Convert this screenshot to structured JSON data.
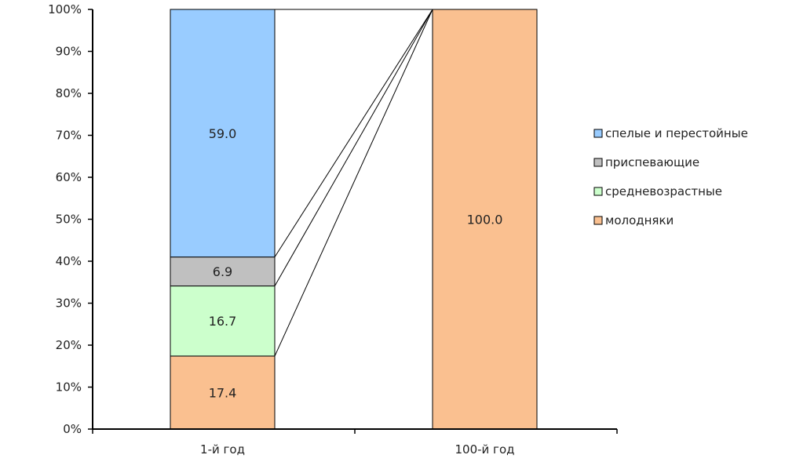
{
  "chart_data": {
    "type": "bar",
    "stacked": "percent",
    "categories": [
      "1-й год",
      "100-й год"
    ],
    "series": [
      {
        "name": "молодняки",
        "values": [
          17.4,
          100.0
        ],
        "color": "#FAC090"
      },
      {
        "name": "средневозрастные",
        "values": [
          16.7,
          0
        ],
        "color": "#CCFFCC"
      },
      {
        "name": "приспевающие",
        "values": [
          6.9,
          0
        ],
        "color": "#C0C0C0"
      },
      {
        "name": "спелые и перестойные",
        "values": [
          59.0,
          0
        ],
        "color": "#99CCFF"
      }
    ],
    "data_labels": [
      [
        "17.4",
        "100.0"
      ],
      [
        "16.7",
        ""
      ],
      [
        "6.9",
        ""
      ],
      [
        "59.0",
        ""
      ]
    ],
    "y_ticks": [
      "0%",
      "10%",
      "20%",
      "30%",
      "40%",
      "50%",
      "60%",
      "70%",
      "80%",
      "90%",
      "100%"
    ],
    "ylim": [
      0,
      100
    ],
    "series_lines": true,
    "legend_position": "right",
    "title": "",
    "xlabel": "",
    "ylabel": ""
  }
}
